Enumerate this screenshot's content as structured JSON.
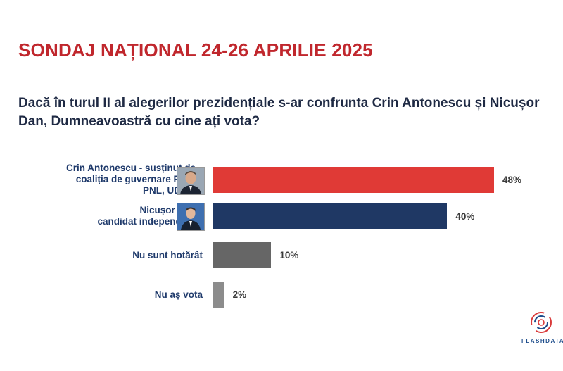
{
  "header": {
    "title": "SONDAJ NAȚIONAL 24-26 APRILIE 2025",
    "question": "Dacă în turul II al alegerilor prezidențiale s-ar confrunta Crin Antonescu și Nicușor Dan, Dumneavoastră cu cine ați vota?"
  },
  "chart_data": {
    "type": "bar",
    "orientation": "horizontal",
    "categories": [
      "Crin Antonescu - susținut de coaliția de guvernare PSD, PNL, UDMR",
      "Nicușor Dan candidat independent",
      "Nu sunt hotărât",
      "Nu aș vota"
    ],
    "category_lines": [
      [
        "Crin Antonescu - susținut de",
        "coaliția de guvernare PSD,",
        "PNL, UDMR"
      ],
      [
        "Nicușor Dan",
        "candidat independent"
      ],
      [
        "Nu sunt hotărât"
      ],
      [
        "Nu aș vota"
      ]
    ],
    "values": [
      48,
      40,
      10,
      2
    ],
    "value_labels": [
      "48%",
      "40%",
      "10%",
      "2%"
    ],
    "colors": [
      "#e03a36",
      "#1f3864",
      "#666666",
      "#8c8c8c"
    ],
    "xlim": [
      0,
      48
    ],
    "grid": false,
    "legend": "none"
  },
  "branding": {
    "logo_text": "FLASHDATA",
    "logo_icon": "flashdata-swirl-icon",
    "accent": "#c0272d"
  }
}
